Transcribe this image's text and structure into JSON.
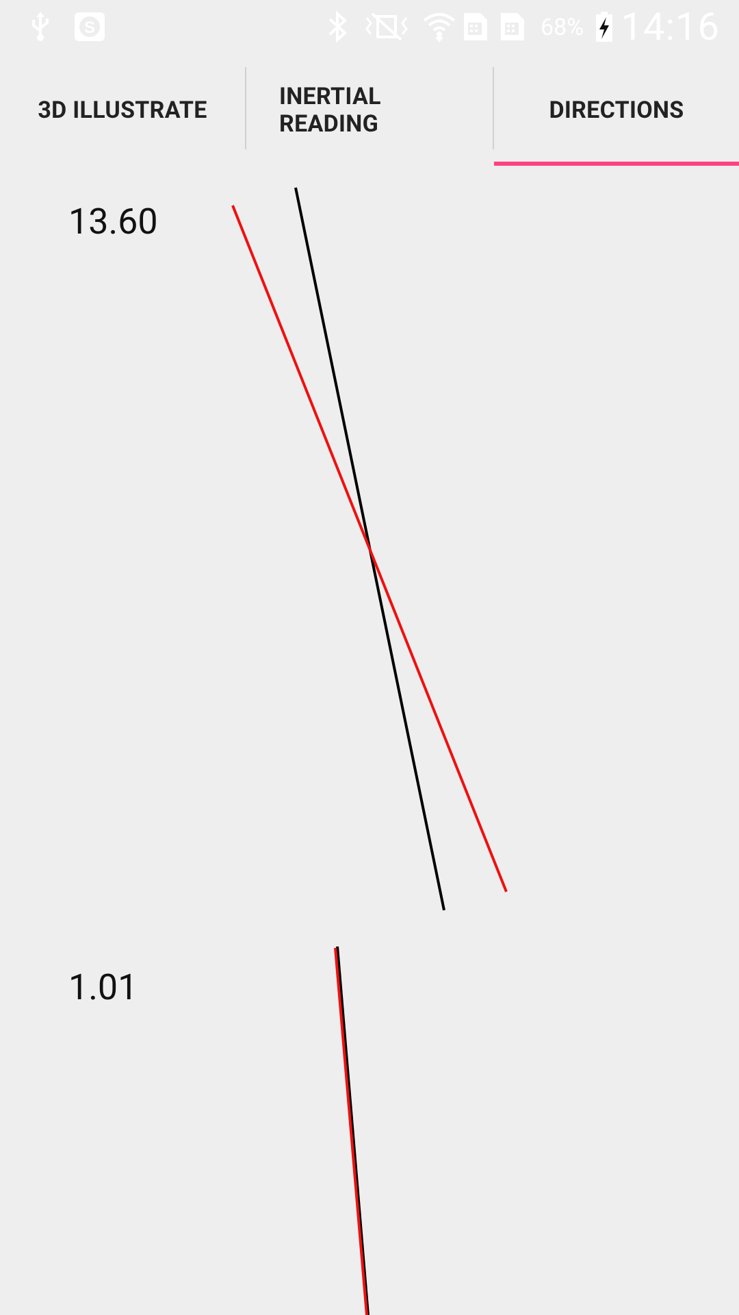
{
  "status_bar": {
    "battery_percent": "68%",
    "time": "14:16",
    "icons": [
      "usb-icon",
      "skype-icon",
      "bluetooth-icon",
      "vibrate-mute-icon",
      "wifi-icon",
      "sim1-icon",
      "sim2-icon",
      "battery-charging-icon"
    ]
  },
  "tabs": [
    {
      "label": "3D ILLUSTRATE"
    },
    {
      "label": "INERTIAL\nREADING"
    },
    {
      "label": "DIRECTIONS"
    }
  ],
  "selected_tab": "DIRECTIONS",
  "readings": {
    "top_value": "13.60",
    "bottom_value": "1.01"
  },
  "colors": {
    "accent": "#ff4081",
    "line_black": "#000000",
    "line_red": "#ee1111",
    "background": "#eeeeee"
  }
}
